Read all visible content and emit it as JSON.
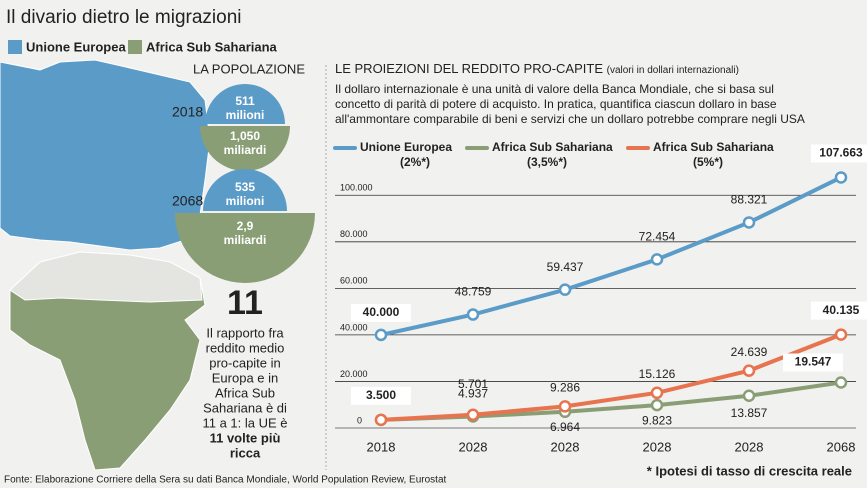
{
  "header": {
    "title": "Il divario dietro le migrazioni"
  },
  "legend": [
    "Unione Europea",
    "Africa Sub Sahariana"
  ],
  "population": {
    "title": "LA POPOLAZIONE",
    "rows": [
      {
        "year": "2018",
        "eu": "511",
        "eu_unit": "milioni",
        "africa": "1,050",
        "africa_unit": "miliardi"
      },
      {
        "year": "2068",
        "eu": "535",
        "eu_unit": "milioni",
        "africa": "2,9",
        "africa_unit": "miliardi"
      }
    ]
  },
  "ratio": {
    "number": "11",
    "lines": [
      "Il rapporto fra",
      "reddito medio",
      "pro-capite in",
      "Europa e in",
      "Africa Sub",
      "Sahariana è di",
      "11 a 1: la UE è"
    ],
    "bold_lines": [
      "11 volte più",
      "ricca"
    ]
  },
  "chart_data": {
    "type": "line",
    "title": "LE PROIEZIONI DEL REDDITO PRO-CAPITE",
    "subtitle": "(valori in dollari internazionali)",
    "description": [
      "Il dollaro internazionale è una unità di valore della Banca Mondiale, che si basa sul",
      "concetto di parità di potere di acquisto. In pratica, quantifica ciascun dollaro in base",
      "all'ammontare comparabile di beni e servizi che un dollaro potrebbe comprare negli USA"
    ],
    "categories": [
      "2018",
      "2028",
      "2028",
      "2028",
      "2028",
      "2068"
    ],
    "series": [
      {
        "name": "Unione Europea",
        "growth": "(2%*)",
        "color": "#5b9bc8",
        "values": [
          40000,
          48759,
          59437,
          72454,
          88321,
          107663
        ],
        "value_labels": [
          "40.000",
          "48.759",
          "59.437",
          "72.454",
          "88.321",
          "107.663"
        ]
      },
      {
        "name": "Africa Sub Sahariana",
        "growth": "(3,5%*)",
        "color": "#8a9e76",
        "values": [
          3500,
          4937,
          6964,
          9823,
          13857,
          19547
        ],
        "value_labels": [
          null,
          "4.937",
          "6.964",
          "9.823",
          "13.857",
          "19.547"
        ]
      },
      {
        "name": "Africa Sub Sahariana",
        "growth": "(5%*)",
        "color": "#e8734f",
        "values": [
          3500,
          5701,
          9286,
          15126,
          24639,
          40135
        ],
        "value_labels": [
          "3.500",
          "5.701",
          "9.286",
          "15.126",
          "24.639",
          "40.135"
        ]
      }
    ],
    "ylim": [
      0,
      110000
    ],
    "yticks": [
      0,
      {
        "value": 20000,
        "label": "20.000"
      },
      {
        "value": 40000,
        "label": "40.000"
      },
      {
        "value": 60000,
        "label": "60.000"
      },
      {
        "value": 80000,
        "label": "80.000"
      },
      {
        "value": 100000,
        "label": "100.000"
      }
    ],
    "grid": true,
    "note": "* Ipotesi di tasso di crescita reale"
  },
  "source": "Fonte: Elaborazione Corriere della Sera su dati Banca Mondiale, World Population Review, Eurostat"
}
